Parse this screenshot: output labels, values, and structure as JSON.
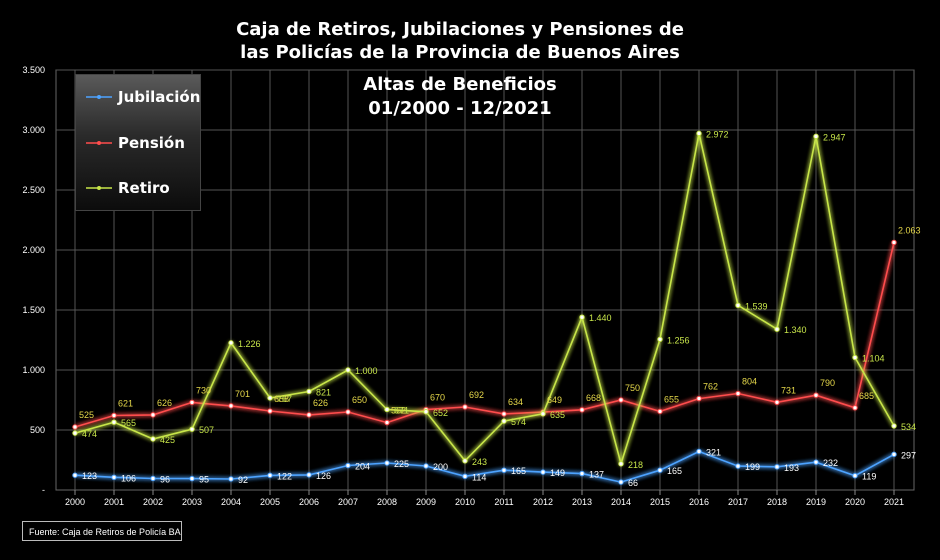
{
  "title_lines": [
    "Caja de Retiros, Jubilaciones y Pensiones de",
    "las Policías de la Provincia de Buenos Aires"
  ],
  "subtitle_lines": [
    "Altas de Beneficios",
    "01/2000 - 12/2021"
  ],
  "source": "Fuente: Caja de Retiros de Policía BA",
  "chart_data": {
    "type": "line",
    "x": [
      "2000",
      "2001",
      "2002",
      "2003",
      "2004",
      "2005",
      "2006",
      "2007",
      "2008",
      "2009",
      "2010",
      "2011",
      "2012",
      "2013",
      "2014",
      "2015",
      "2016",
      "2017",
      "2018",
      "2019",
      "2020",
      "2021"
    ],
    "y_ticks": [
      "-",
      "500",
      "1.000",
      "1.500",
      "2.000",
      "2.500",
      "3.000",
      "3.500"
    ],
    "ylim": [
      0,
      3500
    ],
    "grid": true,
    "legend_position": "top-left",
    "series": [
      {
        "name": "Jubilación",
        "color": "#4da3ff",
        "values": [
          123,
          106,
          96,
          95,
          92,
          122,
          126,
          204,
          225,
          200,
          114,
          165,
          149,
          137,
          66,
          165,
          321,
          199,
          193,
          232,
          119,
          297
        ],
        "labels": [
          "123",
          "106",
          "96",
          "95",
          "92",
          "122",
          "126",
          "204",
          "225",
          "200",
          "114",
          "165",
          "149",
          "137",
          "66",
          "165",
          "321",
          "199",
          "193",
          "232",
          "119",
          "297"
        ]
      },
      {
        "name": "Pensión",
        "color": "#ff4d4d",
        "values": [
          525,
          621,
          626,
          730,
          701,
          658,
          626,
          650,
          562,
          670,
          692,
          634,
          649,
          668,
          750,
          655,
          762,
          804,
          731,
          790,
          685,
          2063
        ],
        "labels": [
          "525",
          "621",
          "626",
          "730",
          "701",
          "658",
          "626",
          "650",
          "562",
          "670",
          "692",
          "634",
          "649",
          "668",
          "750",
          "655",
          "762",
          "804",
          "731",
          "790",
          "685",
          "2.063"
        ]
      },
      {
        "name": "Retiro",
        "color": "#c8e64a",
        "values": [
          474,
          565,
          425,
          507,
          1226,
          767,
          821,
          1000,
          671,
          652,
          243,
          574,
          635,
          1440,
          218,
          1256,
          2972,
          1539,
          1340,
          2947,
          1104,
          534
        ],
        "labels": [
          "474",
          "565",
          "425",
          "507",
          "1.226",
          "767",
          "821",
          "1.000",
          "671",
          "652",
          "243",
          "574",
          "635",
          "1.440",
          "218",
          "1.256",
          "2.972",
          "1.539",
          "1.340",
          "2.947",
          "1.104",
          "534"
        ]
      }
    ]
  }
}
